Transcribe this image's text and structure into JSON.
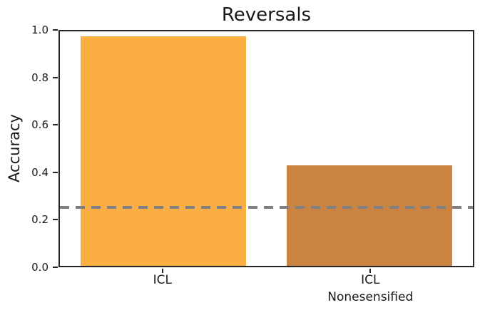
{
  "figure": {
    "title": "Reversals",
    "ylabel": "Accuracy"
  },
  "colors": {
    "bar_icl": "#FBAE42",
    "bar_icl_nonesensified": "#CA8340",
    "chance_line": "#808080",
    "axis": "#262626",
    "background": "#ffffff"
  },
  "chart_data": {
    "type": "bar",
    "title": "Reversals",
    "xlabel": "",
    "ylabel": "Accuracy",
    "categories": [
      "ICL",
      "ICL\nNonesensified"
    ],
    "category_label_lines": [
      [
        "ICL"
      ],
      [
        "ICL",
        "Nonesensified"
      ]
    ],
    "values": [
      0.98,
      0.43
    ],
    "bar_colors": [
      "#FBAE42",
      "#CA8340"
    ],
    "bar_centers_fraction": [
      0.25,
      0.75
    ],
    "bar_width_fraction": 0.4,
    "ylim": [
      0.0,
      1.0
    ],
    "yticks": [
      0.0,
      0.2,
      0.4,
      0.6,
      0.8,
      1.0
    ],
    "ytick_labels": [
      "0.0",
      "0.2",
      "0.4",
      "0.6",
      "0.8",
      "1.0"
    ],
    "reference_line": {
      "value": 0.25,
      "style": "dashed",
      "color": "#808080",
      "meaning": "chance level"
    },
    "grid": false,
    "legend": null,
    "spines": "full-box"
  }
}
